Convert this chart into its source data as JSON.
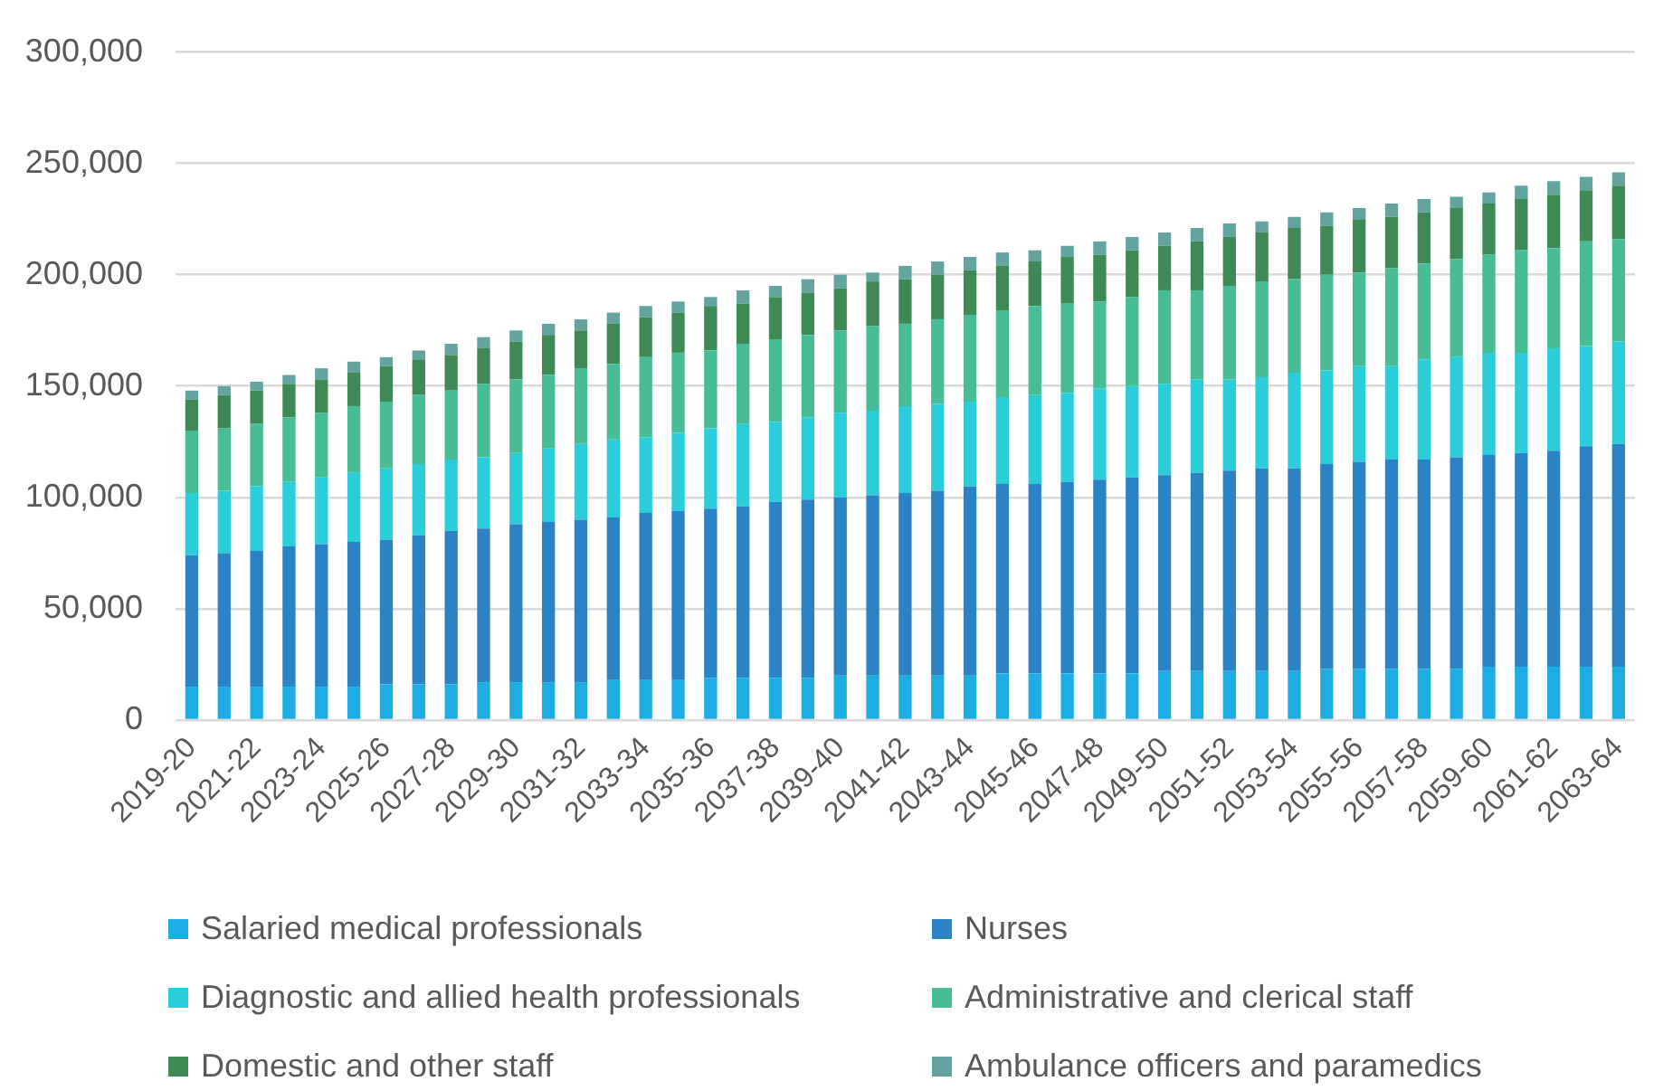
{
  "chart_data": {
    "type": "bar",
    "stacked": true,
    "grid": "y",
    "legend": "bottom",
    "categories": [
      "2019-20",
      null,
      "2021-22",
      null,
      "2023-24",
      null,
      "2025-26",
      null,
      "2027-28",
      null,
      "2029-30",
      null,
      "2031-32",
      null,
      "2033-34",
      null,
      "2035-36",
      null,
      "2037-38",
      null,
      "2039-40",
      null,
      "2041-42",
      null,
      "2043-44",
      null,
      "2045-46",
      null,
      "2047-48",
      null,
      "2049-50",
      null,
      "2051-52",
      null,
      "2053-54",
      null,
      "2055-56",
      null,
      "2057-58",
      null,
      "2059-60",
      null,
      "2061-62",
      null,
      "2063-64"
    ],
    "ylim": [
      0,
      300000
    ],
    "yticks": [
      {
        "value": 0,
        "label": "0"
      },
      {
        "value": 50000,
        "label": "50,000"
      },
      {
        "value": 100000,
        "label": "100,000"
      },
      {
        "value": 150000,
        "label": "150,000"
      },
      {
        "value": 200000,
        "label": "200,000"
      },
      {
        "value": 250000,
        "label": "250,000"
      },
      {
        "value": 300000,
        "label": "300,000"
      }
    ],
    "series": [
      {
        "name": "Salaried medical professionals",
        "color": "#1eade3",
        "values": [
          15000,
          15000,
          15000,
          15000,
          15000,
          15000,
          16000,
          16000,
          16000,
          17000,
          17000,
          17000,
          17000,
          18000,
          18000,
          18000,
          19000,
          19000,
          19000,
          19000,
          20000,
          20000,
          20000,
          20000,
          20000,
          21000,
          21000,
          21000,
          21000,
          21000,
          22000,
          22000,
          22000,
          22000,
          22000,
          23000,
          23000,
          23000,
          23000,
          23000,
          24000,
          24000,
          24000,
          24000,
          24000
        ]
      },
      {
        "name": "Nurses",
        "color": "#2a83c5",
        "values": [
          59000,
          60000,
          61000,
          63000,
          64000,
          65000,
          65000,
          67000,
          69000,
          69000,
          71000,
          72000,
          73000,
          73000,
          75000,
          76000,
          76000,
          77000,
          79000,
          80000,
          80000,
          81000,
          82000,
          83000,
          85000,
          85000,
          85000,
          86000,
          87000,
          88000,
          88000,
          89000,
          90000,
          91000,
          91000,
          92000,
          93000,
          94000,
          94000,
          95000,
          95000,
          96000,
          97000,
          99000,
          100000
        ]
      },
      {
        "name": "Diagnostic and allied health professionals",
        "color": "#2acdd9",
        "values": [
          28000,
          28000,
          29000,
          29000,
          30000,
          31000,
          32000,
          32000,
          32000,
          32000,
          32000,
          33000,
          34000,
          35000,
          34000,
          35000,
          36000,
          37000,
          36000,
          37000,
          38000,
          38000,
          39000,
          39000,
          38000,
          39000,
          40000,
          40000,
          41000,
          41000,
          41000,
          42000,
          41000,
          41000,
          43000,
          42000,
          43000,
          42000,
          45000,
          45000,
          46000,
          45000,
          46000,
          45000,
          46000
        ]
      },
      {
        "name": "Administrative and clerical staff",
        "color": "#47bc95",
        "values": [
          28000,
          28000,
          28000,
          29000,
          29000,
          30000,
          30000,
          31000,
          31000,
          33000,
          33000,
          33000,
          34000,
          34000,
          36000,
          36000,
          35000,
          36000,
          37000,
          37000,
          37000,
          38000,
          37000,
          38000,
          39000,
          39000,
          40000,
          40000,
          39000,
          40000,
          42000,
          40000,
          42000,
          43000,
          42000,
          43000,
          42000,
          44000,
          43000,
          44000,
          44000,
          46000,
          45000,
          47000,
          46000
        ]
      },
      {
        "name": "Domestic and other staff",
        "color": "#3f8a54",
        "values": [
          14000,
          15000,
          15000,
          15000,
          15000,
          15000,
          16000,
          16000,
          16000,
          16000,
          17000,
          18000,
          17000,
          18000,
          18000,
          18000,
          20000,
          18000,
          19000,
          19000,
          19000,
          20000,
          20000,
          20000,
          20000,
          20000,
          20000,
          21000,
          21000,
          21000,
          20000,
          22000,
          22000,
          22000,
          23000,
          22000,
          24000,
          23000,
          23000,
          23000,
          23000,
          23000,
          24000,
          23000,
          24000
        ]
      },
      {
        "name": "Ambulance officers and paramedics",
        "color": "#63a4a0",
        "values": [
          4000,
          4000,
          4000,
          4000,
          5000,
          5000,
          4000,
          4000,
          5000,
          5000,
          5000,
          5000,
          5000,
          5000,
          5000,
          5000,
          4000,
          6000,
          5000,
          6000,
          6000,
          4000,
          6000,
          6000,
          6000,
          6000,
          5000,
          5000,
          6000,
          6000,
          6000,
          6000,
          6000,
          5000,
          5000,
          6000,
          5000,
          6000,
          6000,
          5000,
          5000,
          6000,
          6000,
          6000,
          6000
        ]
      }
    ]
  }
}
